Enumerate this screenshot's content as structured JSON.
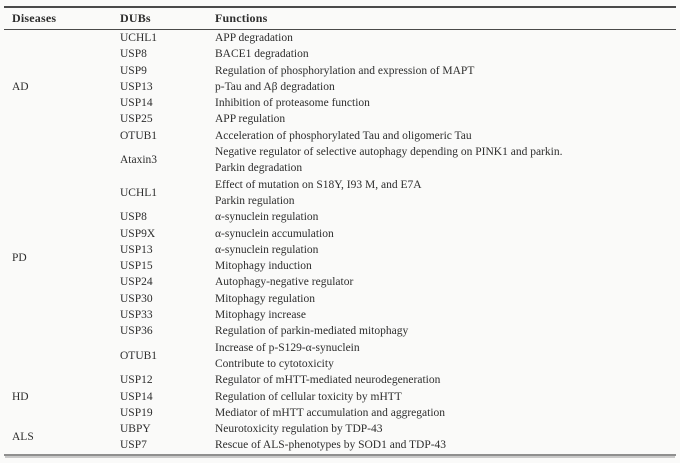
{
  "table": {
    "headers": [
      "Diseases",
      "DUBs",
      "Functions"
    ],
    "groups": [
      {
        "disease": "AD",
        "entries": [
          {
            "dub": "UCHL1",
            "functions": [
              "APP degradation"
            ]
          },
          {
            "dub": "USP8",
            "functions": [
              "BACE1 degradation"
            ]
          },
          {
            "dub": "USP9",
            "functions": [
              "Regulation of phosphorylation and expression of MAPT"
            ]
          },
          {
            "dub": "USP13",
            "functions": [
              "p-Tau and Aβ degradation"
            ]
          },
          {
            "dub": "USP14",
            "functions": [
              "Inhibition of proteasome function"
            ]
          },
          {
            "dub": "USP25",
            "functions": [
              "APP regulation"
            ]
          },
          {
            "dub": "OTUB1",
            "functions": [
              "Acceleration of phosphorylated Tau and oligomeric Tau"
            ]
          }
        ]
      },
      {
        "disease": "PD",
        "entries": [
          {
            "dub": "Ataxin3",
            "functions": [
              "Negative regulator of selective autophagy depending on PINK1 and parkin.",
              "Parkin degradation"
            ]
          },
          {
            "dub": "UCHL1",
            "functions": [
              "Effect of mutation on S18Y, I93 M, and E7A",
              "Parkin regulation"
            ]
          },
          {
            "dub": "USP8",
            "functions": [
              "α-synuclein regulation"
            ]
          },
          {
            "dub": "USP9X",
            "functions": [
              "α-synuclein accumulation"
            ]
          },
          {
            "dub": "USP13",
            "functions": [
              "α-synuclein regulation"
            ]
          },
          {
            "dub": "USP15",
            "functions": [
              "Mitophagy induction"
            ]
          },
          {
            "dub": "USP24",
            "functions": [
              "Autophagy-negative regulator"
            ]
          },
          {
            "dub": "USP30",
            "functions": [
              "Mitophagy regulation"
            ]
          },
          {
            "dub": "USP33",
            "functions": [
              "Mitophagy increase"
            ]
          },
          {
            "dub": "USP36",
            "functions": [
              "Regulation of parkin-mediated mitophagy"
            ]
          },
          {
            "dub": "OTUB1",
            "functions": [
              "Increase of p-S129-α-synuclein",
              "Contribute to cytotoxicity"
            ]
          }
        ]
      },
      {
        "disease": "HD",
        "entries": [
          {
            "dub": "USP12",
            "functions": [
              "Regulator of mHTT-mediated neurodegeneration"
            ]
          },
          {
            "dub": "USP14",
            "functions": [
              "Regulation of cellular toxicity by mHTT"
            ]
          },
          {
            "dub": "USP19",
            "functions": [
              "Mediator of mHTT accumulation and aggregation"
            ]
          }
        ]
      },
      {
        "disease": "ALS",
        "entries": [
          {
            "dub": "UBPY",
            "functions": [
              "Neurotoxicity regulation by TDP-43"
            ]
          },
          {
            "dub": "USP7",
            "functions": [
              "Rescue of ALS-phenotypes by SOD1 and TDP-43"
            ]
          }
        ]
      }
    ]
  }
}
